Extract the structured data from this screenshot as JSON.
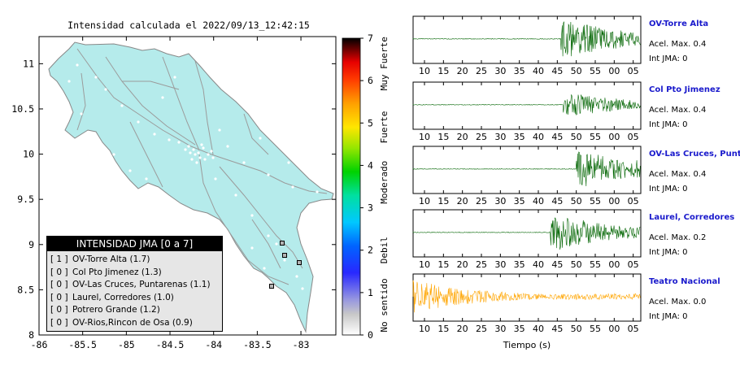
{
  "map": {
    "title": "Intensidad calculada el 2022/09/13_12:42:15",
    "x_ticks": [
      "-86",
      "-85.5",
      "-85",
      "-84.5",
      "-84",
      "-83.5",
      "-83"
    ],
    "y_ticks": [
      "11",
      "10.5",
      "10",
      "9.5",
      "9",
      "8.5",
      "8"
    ],
    "x_range": [
      -86,
      -82.6
    ],
    "y_range": [
      8,
      11.3
    ],
    "land_color": "#b5ebeb",
    "border_color": "#888888",
    "road_color": "#9b9b9b"
  },
  "colorbar": {
    "ticks": [
      "7",
      "6",
      "5",
      "4",
      "3",
      "2",
      "1",
      "0"
    ],
    "range": [
      0,
      7
    ],
    "labels": [
      "Muy Fuerte",
      "Fuerte",
      "Moderado",
      "Debil",
      "No sentido"
    ]
  },
  "legend": {
    "title": "INTENSIDAD JMA [0 a 7]",
    "rows": [
      {
        "count": "[ 1 ]",
        "name": "OV-Torre Alta (1.7)"
      },
      {
        "count": "[ 0 ]",
        "name": "Col Pto Jimenez (1.3)"
      },
      {
        "count": "[ 0 ]",
        "name": "OV-Las Cruces, Puntarenas (1.1)"
      },
      {
        "count": "[ 0 ]",
        "name": "Laurel, Corredores (1.0)"
      },
      {
        "count": "[ 0 ]",
        "name": "Potrero Grande (1.2)"
      },
      {
        "count": "[ 0 ]",
        "name": "OV-Rios,Rincon de Osa (0.9)"
      }
    ]
  },
  "chart_data": [
    {
      "type": "heatmap",
      "title": "Intensidad calculada el 2022/09/13_12:42:15",
      "xlim": [
        -86,
        -82.6
      ],
      "ylim": [
        8,
        11.3
      ],
      "colorscale_range": [
        0,
        7
      ],
      "stations": [
        {
          "name": "OV-Torre Alta",
          "value": 1.7
        },
        {
          "name": "Col Pto Jimenez",
          "value": 1.3
        },
        {
          "name": "OV-Las Cruces, Puntarenas",
          "value": 1.1
        },
        {
          "name": "Laurel, Corredores",
          "value": 1.0
        },
        {
          "name": "Potrero Grande",
          "value": 1.2
        },
        {
          "name": "OV-Rios,Rincon de Osa",
          "value": 0.9
        }
      ]
    },
    {
      "type": "line",
      "xlabel": "Tiempo (s)",
      "x_ticks": [
        "10",
        "15",
        "20",
        "25",
        "30",
        "35",
        "40",
        "45",
        "50",
        "55",
        "00",
        "05"
      ],
      "series": [
        {
          "name": "OV-Torre Alta",
          "acel": "Acel. Max. 0.4",
          "int": "Int JMA: 0",
          "onset": 46,
          "amp": 0.95,
          "color": "#006400"
        },
        {
          "name": "Col Pto Jimenez",
          "acel": "Acel. Max. 0.4",
          "int": "Int JMA: 0",
          "onset": 46.5,
          "amp": 0.6,
          "color": "#006400"
        },
        {
          "name": "OV-Las Cruces, Puntarenas",
          "acel": "Acel. Max. 0.4",
          "int": "Int JMA: 0",
          "onset": 50,
          "amp": 0.95,
          "color": "#006400"
        },
        {
          "name": "Laurel, Corredores",
          "acel": "Acel. Max. 0.2",
          "int": "Int JMA: 0",
          "onset": 43,
          "amp": 0.9,
          "color": "#006400"
        },
        {
          "name": "Teatro Nacional",
          "acel": "Acel. Max. 0.0",
          "int": "Int JMA: 0",
          "onset": 7,
          "amp": 0.75,
          "color": "#ffa500"
        }
      ]
    }
  ]
}
